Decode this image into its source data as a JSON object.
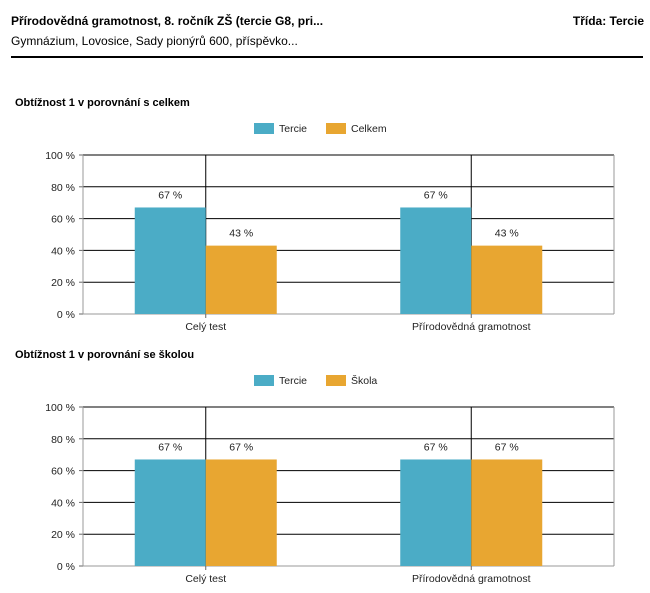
{
  "header": {
    "title": "Přírodovědná gramotnost, 8. ročník ZŠ (tercie G8, pri...",
    "class_label": "Třída: Tercie",
    "school": "Gymnázium, Lovosice, Sady pionýrů 600, příspěvko..."
  },
  "colors": {
    "series1": "#4bacc6",
    "series2": "#e8a631"
  },
  "chart_data": [
    {
      "type": "bar",
      "title": "Obtížnost 1 v porovnání s celkem",
      "categories": [
        "Celý test",
        "Přírodovědná gramotnost"
      ],
      "series": [
        {
          "name": "Tercie",
          "values": [
            67,
            67
          ],
          "labels": [
            "67 %",
            "67 %"
          ]
        },
        {
          "name": "Celkem",
          "values": [
            43,
            43
          ],
          "labels": [
            "43 %",
            "43 %"
          ]
        }
      ],
      "yticks": [
        "0 %",
        "20 %",
        "40 %",
        "60 %",
        "80 %",
        "100 %"
      ],
      "ylim": [
        0,
        100
      ],
      "grid": true,
      "legend": "top-center"
    },
    {
      "type": "bar",
      "title": "Obtížnost 1 v porovnání se školou",
      "categories": [
        "Celý test",
        "Přírodovědná gramotnost"
      ],
      "series": [
        {
          "name": "Tercie",
          "values": [
            67,
            67
          ],
          "labels": [
            "67 %",
            "67 %"
          ]
        },
        {
          "name": "Škola",
          "values": [
            67,
            67
          ],
          "labels": [
            "67 %",
            "67 %"
          ]
        }
      ],
      "yticks": [
        "0 %",
        "20 %",
        "40 %",
        "60 %",
        "80 %",
        "100 %"
      ],
      "ylim": [
        0,
        100
      ],
      "grid": true,
      "legend": "top-center"
    }
  ]
}
